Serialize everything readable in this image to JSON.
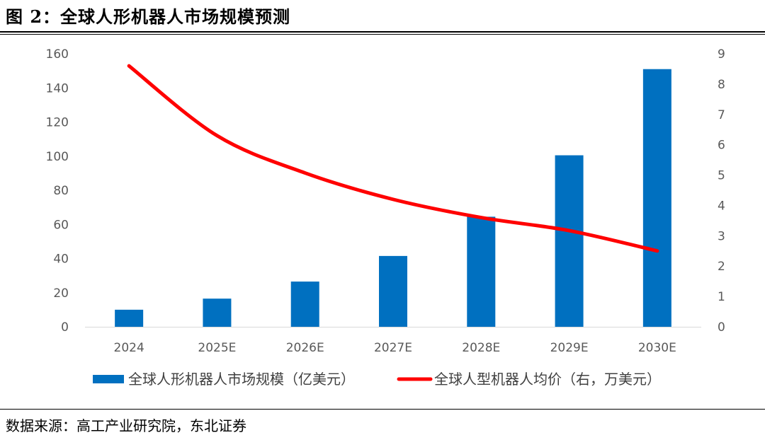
{
  "figure": {
    "title": "图 2：全球人形机器人市场规模预测",
    "source": "数据来源：高工产业研究院，东北证券"
  },
  "colors": {
    "bar": "#0070C0",
    "line": "#FF0000",
    "axis_text": "#595959"
  },
  "chart_data": {
    "type": "bar",
    "categories": [
      "2024",
      "2025E",
      "2026E",
      "2027E",
      "2028E",
      "2029E",
      "2030E"
    ],
    "series": [
      {
        "name": "全球人形机器人市场规模（亿美元）",
        "type": "bar",
        "axis": "left",
        "values": [
          10,
          16.5,
          26.5,
          41.5,
          64.5,
          100.5,
          151
        ]
      },
      {
        "name": "全球人型机器人均价（右，万美元）",
        "type": "line",
        "axis": "right",
        "values": [
          8.6,
          6.3,
          5.07,
          4.2,
          3.6,
          3.17,
          2.5
        ]
      }
    ],
    "y_left": {
      "min": 0,
      "max": 160,
      "ticks": [
        0,
        20,
        40,
        60,
        80,
        100,
        120,
        140,
        160
      ]
    },
    "y_right": {
      "min": 0,
      "max": 9,
      "ticks": [
        0,
        1,
        2,
        3,
        4,
        5,
        6,
        7,
        8,
        9
      ]
    },
    "grid": false,
    "legend": "bottom"
  }
}
